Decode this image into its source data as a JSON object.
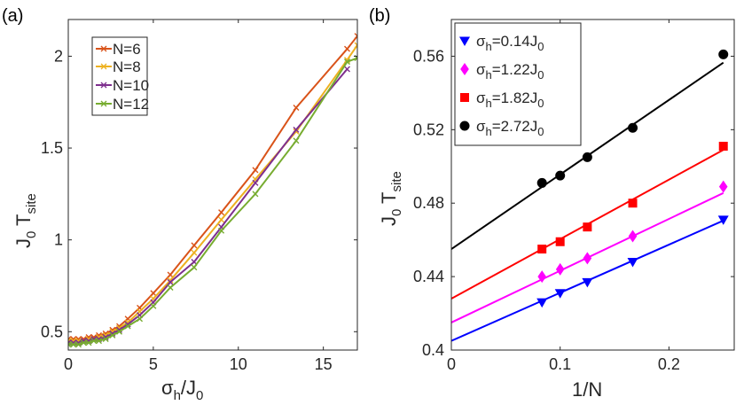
{
  "chart_data": [
    {
      "panel": "(a)",
      "type": "line",
      "xlabel": {
        "main": "σ",
        "sub": "h",
        "rest": "/J",
        "sub2": "0"
      },
      "ylabel": {
        "main": "J",
        "sub": "0",
        "rest": " T",
        "sub2": "site"
      },
      "xlim": [
        0,
        17
      ],
      "ylim": [
        0.4,
        2.2
      ],
      "xticks": [
        0,
        5,
        10,
        15
      ],
      "yticks": [
        0.5,
        1,
        1.5,
        2
      ],
      "legend_position": "top-left",
      "series": [
        {
          "name": "N=6",
          "color": "#D95319",
          "x": [
            0,
            0.3,
            0.6,
            0.9,
            1.2,
            1.5,
            1.8,
            2.2,
            2.6,
            3.0,
            3.5,
            4.2,
            5.0,
            6.0,
            7.4,
            9.0,
            11.0,
            13.4,
            16.4,
            17.0
          ],
          "y": [
            0.46,
            0.46,
            0.46,
            0.46,
            0.47,
            0.47,
            0.48,
            0.49,
            0.51,
            0.53,
            0.57,
            0.63,
            0.71,
            0.81,
            0.97,
            1.15,
            1.38,
            1.72,
            2.04,
            2.11
          ]
        },
        {
          "name": "N=8",
          "color": "#EDB120",
          "x": [
            0,
            0.3,
            0.6,
            0.9,
            1.2,
            1.5,
            1.8,
            2.2,
            2.6,
            3.0,
            3.5,
            4.2,
            5.0,
            6.0,
            7.4,
            9.0,
            11.0,
            13.4,
            16.4,
            17.0
          ],
          "y": [
            0.45,
            0.45,
            0.45,
            0.45,
            0.46,
            0.46,
            0.47,
            0.48,
            0.5,
            0.52,
            0.55,
            0.61,
            0.68,
            0.78,
            0.93,
            1.11,
            1.33,
            1.59,
            1.98,
            2.06
          ]
        },
        {
          "name": "N=10",
          "color": "#7E2F8E",
          "x": [
            0,
            0.3,
            0.6,
            0.9,
            1.2,
            1.5,
            1.8,
            2.2,
            2.6,
            3.0,
            3.5,
            4.2,
            5.0,
            6.0,
            7.4,
            9.0,
            11.0,
            13.4,
            16.4
          ],
          "y": [
            0.44,
            0.44,
            0.44,
            0.45,
            0.45,
            0.46,
            0.46,
            0.47,
            0.49,
            0.51,
            0.54,
            0.59,
            0.66,
            0.77,
            0.88,
            1.07,
            1.31,
            1.6,
            1.93
          ]
        },
        {
          "name": "N=12",
          "color": "#77AC30",
          "x": [
            0,
            0.3,
            0.6,
            0.9,
            1.2,
            1.5,
            1.8,
            2.2,
            2.6,
            3.0,
            3.5,
            4.2,
            5.0,
            6.0,
            7.4,
            9.0,
            11.0,
            13.4,
            16.4,
            17.0
          ],
          "y": [
            0.43,
            0.43,
            0.43,
            0.44,
            0.44,
            0.45,
            0.45,
            0.46,
            0.48,
            0.5,
            0.53,
            0.57,
            0.64,
            0.74,
            0.85,
            1.05,
            1.25,
            1.54,
            1.97,
            1.99
          ]
        }
      ]
    },
    {
      "panel": "(b)",
      "type": "scatter",
      "xlabel": {
        "main": "1/N"
      },
      "ylabel": {
        "main": "J",
        "sub": "0",
        "rest": " T",
        "sub2": "site"
      },
      "xlim": [
        0,
        0.26
      ],
      "ylim": [
        0.4,
        0.58
      ],
      "xticks": [
        0,
        0.1,
        0.2
      ],
      "yticks": [
        0.4,
        0.44,
        0.48,
        0.52,
        0.56
      ],
      "xtick_labels": [
        "0",
        "0.1",
        "0.2"
      ],
      "ytick_labels": [
        "0.4",
        "0.44",
        "0.48",
        "0.52",
        "0.56"
      ],
      "legend_position": "top-left",
      "series": [
        {
          "label_main": "σ",
          "label_sub": "h",
          "label_rest": "=0.14J",
          "label_sub2": "0",
          "marker": "triangle-down",
          "color": "#0000FF",
          "x": [
            0.0833,
            0.1,
            0.125,
            0.1667,
            0.25
          ],
          "y": [
            0.426,
            0.431,
            0.437,
            0.448,
            0.471
          ],
          "fit": {
            "intercept": 0.405,
            "slope": 0.262
          }
        },
        {
          "label_main": "σ",
          "label_sub": "h",
          "label_rest": "=1.22J",
          "label_sub2": "0",
          "marker": "diamond",
          "color": "#FF00FF",
          "x": [
            0.0833,
            0.1,
            0.125,
            0.1667,
            0.25
          ],
          "y": [
            0.44,
            0.444,
            0.45,
            0.462,
            0.489
          ],
          "fit": {
            "intercept": 0.415,
            "slope": 0.282
          }
        },
        {
          "label_main": "σ",
          "label_sub": "h",
          "label_rest": "=1.82J",
          "label_sub2": "0",
          "marker": "square",
          "color": "#FF0000",
          "x": [
            0.0833,
            0.1,
            0.125,
            0.1667,
            0.25
          ],
          "y": [
            0.455,
            0.459,
            0.467,
            0.48,
            0.511
          ],
          "fit": {
            "intercept": 0.428,
            "slope": 0.324
          }
        },
        {
          "label_main": "σ",
          "label_sub": "h",
          "label_rest": "=2.72J",
          "label_sub2": "0",
          "marker": "circle",
          "color": "#000000",
          "x": [
            0.0833,
            0.1,
            0.125,
            0.1667,
            0.25
          ],
          "y": [
            0.491,
            0.495,
            0.505,
            0.521,
            0.561
          ],
          "fit": {
            "intercept": 0.455,
            "slope": 0.406
          }
        }
      ]
    }
  ]
}
